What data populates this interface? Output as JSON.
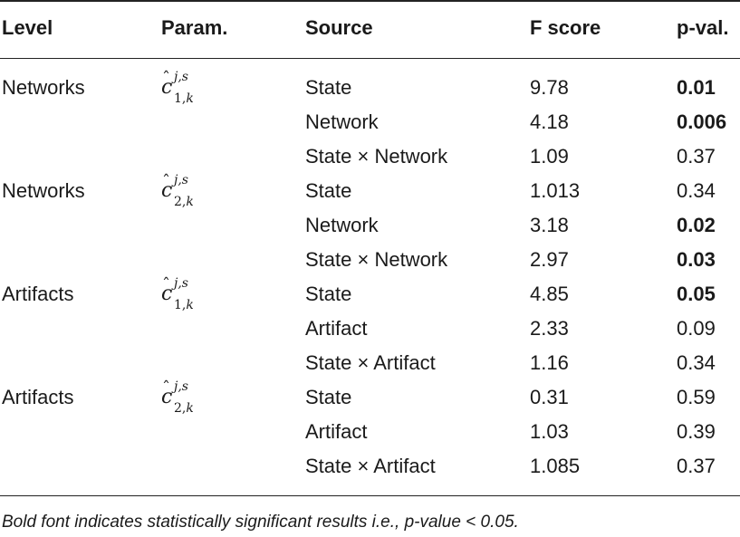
{
  "headers": {
    "level": "Level",
    "param": "Param.",
    "source": "Source",
    "fscore": "F score",
    "pval": "p-val."
  },
  "groups": [
    {
      "level": "Networks",
      "param": {
        "base": "c",
        "sup": "j,s",
        "sub_num": "1",
        "sub_var": "k"
      }
    },
    {
      "level": "Networks",
      "param": {
        "base": "c",
        "sup": "j,s",
        "sub_num": "2",
        "sub_var": "k"
      }
    },
    {
      "level": "Artifacts",
      "param": {
        "base": "c",
        "sup": "j,s",
        "sub_num": "1",
        "sub_var": "k"
      }
    },
    {
      "level": "Artifacts",
      "param": {
        "base": "c",
        "sup": "j,s",
        "sub_num": "2",
        "sub_var": "k"
      }
    }
  ],
  "rows": [
    {
      "source": "State",
      "f": "9.78",
      "p": "0.01",
      "significant": true
    },
    {
      "source": "Network",
      "f": "4.18",
      "p": "0.006",
      "significant": true
    },
    {
      "source": "State × Network",
      "f": "1.09",
      "p": "0.37",
      "significant": false
    },
    {
      "source": "State",
      "f": "1.013",
      "p": "0.34",
      "significant": false
    },
    {
      "source": "Network",
      "f": "3.18",
      "p": "0.02",
      "significant": true
    },
    {
      "source": "State × Network",
      "f": "2.97",
      "p": "0.03",
      "significant": true
    },
    {
      "source": "State",
      "f": "4.85",
      "p": "0.05",
      "significant": true
    },
    {
      "source": "Artifact",
      "f": "2.33",
      "p": "0.09",
      "significant": false
    },
    {
      "source": "State × Artifact",
      "f": "1.16",
      "p": "0.34",
      "significant": false
    },
    {
      "source": "State",
      "f": "0.31",
      "p": "0.59",
      "significant": false
    },
    {
      "source": "Artifact",
      "f": "1.03",
      "p": "0.39",
      "significant": false
    },
    {
      "source": "State × Artifact",
      "f": "1.085",
      "p": "0.37",
      "significant": false
    }
  ],
  "footnote": "Bold font indicates statistically significant results i.e., p-value < 0.05."
}
